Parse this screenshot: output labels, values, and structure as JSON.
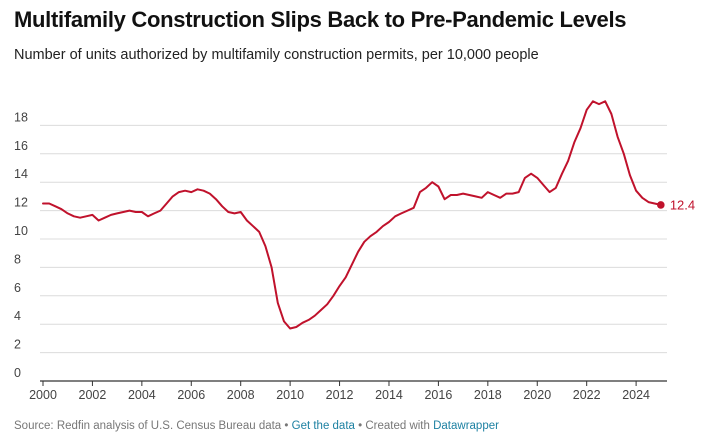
{
  "title": "Multifamily Construction Slips Back to Pre-Pandemic Levels",
  "subtitle": "Number of units authorized by multifamily construction permits, per 10,000 people",
  "footer": {
    "source": "Source: Redfin analysis of U.S. Census Bureau data",
    "sep": " • ",
    "get_data": "Get the data",
    "created": "Created with",
    "datawrapper": "Datawrapper"
  },
  "colors": {
    "line": "#c0122c",
    "grid": "#dcdcdc",
    "axis": "#333333",
    "text": "#444444"
  },
  "chart_data": {
    "type": "line",
    "title": "Multifamily Construction Slips Back to Pre-Pandemic Levels",
    "subtitle": "Number of units authorized by multifamily construction permits, per 10,000 people",
    "xlim": [
      2000,
      2025.25
    ],
    "ylim": [
      0,
      20
    ],
    "x_ticks": [
      2000,
      2002,
      2004,
      2006,
      2008,
      2010,
      2012,
      2014,
      2016,
      2018,
      2020,
      2022,
      2024
    ],
    "y_ticks": [
      0,
      2,
      4,
      6,
      8,
      10,
      12,
      14,
      16,
      18
    ],
    "grid": "horizontal",
    "end_label": "12.4",
    "series": [
      {
        "x": [
          2000.0,
          2000.25,
          2000.5,
          2000.75,
          2001.0,
          2001.25,
          2001.5,
          2001.75,
          2002.0,
          2002.25,
          2002.5,
          2002.75,
          2003.0,
          2003.25,
          2003.5,
          2003.75,
          2004.0,
          2004.25,
          2004.5,
          2004.75,
          2005.0,
          2005.25,
          2005.5,
          2005.75,
          2006.0,
          2006.25,
          2006.5,
          2006.75,
          2007.0,
          2007.25,
          2007.5,
          2007.75,
          2008.0,
          2008.25,
          2008.5,
          2008.75,
          2009.0,
          2009.25,
          2009.5,
          2009.75,
          2010.0,
          2010.25,
          2010.5,
          2010.75,
          2011.0,
          2011.25,
          2011.5,
          2011.75,
          2012.0,
          2012.25,
          2012.5,
          2012.75,
          2013.0,
          2013.25,
          2013.5,
          2013.75,
          2014.0,
          2014.25,
          2014.5,
          2014.75,
          2015.0,
          2015.25,
          2015.5,
          2015.75,
          2016.0,
          2016.25,
          2016.5,
          2016.75,
          2017.0,
          2017.25,
          2017.5,
          2017.75,
          2018.0,
          2018.25,
          2018.5,
          2018.75,
          2019.0,
          2019.25,
          2019.5,
          2019.75,
          2020.0,
          2020.25,
          2020.5,
          2020.75,
          2021.0,
          2021.25,
          2021.5,
          2021.75,
          2022.0,
          2022.25,
          2022.5,
          2022.75,
          2023.0,
          2023.25,
          2023.5,
          2023.75,
          2024.0,
          2024.25,
          2024.5,
          2024.75,
          2025.0
        ],
        "y": [
          12.5,
          12.5,
          12.3,
          12.1,
          11.8,
          11.6,
          11.5,
          11.6,
          11.7,
          11.3,
          11.5,
          11.7,
          11.8,
          11.9,
          12.0,
          11.9,
          11.9,
          11.6,
          11.8,
          12.0,
          12.5,
          13.0,
          13.3,
          13.4,
          13.3,
          13.5,
          13.4,
          13.2,
          12.8,
          12.3,
          11.9,
          11.8,
          11.9,
          11.3,
          10.9,
          10.5,
          9.5,
          8.0,
          5.5,
          4.2,
          3.7,
          3.8,
          4.1,
          4.3,
          4.6,
          5.0,
          5.4,
          6.0,
          6.7,
          7.3,
          8.2,
          9.1,
          9.8,
          10.2,
          10.5,
          10.9,
          11.2,
          11.6,
          11.8,
          12.0,
          12.2,
          13.3,
          13.6,
          14.0,
          13.7,
          12.8,
          13.1,
          13.1,
          13.2,
          13.1,
          13.0,
          12.9,
          13.3,
          13.1,
          12.9,
          13.2,
          13.2,
          13.3,
          14.3,
          14.6,
          14.3,
          13.8,
          13.3,
          13.6,
          14.6,
          15.5,
          16.8,
          17.8,
          19.1,
          19.7,
          19.5,
          19.7,
          18.8,
          17.2,
          16.0,
          14.5,
          13.4,
          12.9,
          12.6,
          12.5,
          12.4
        ]
      }
    ]
  }
}
